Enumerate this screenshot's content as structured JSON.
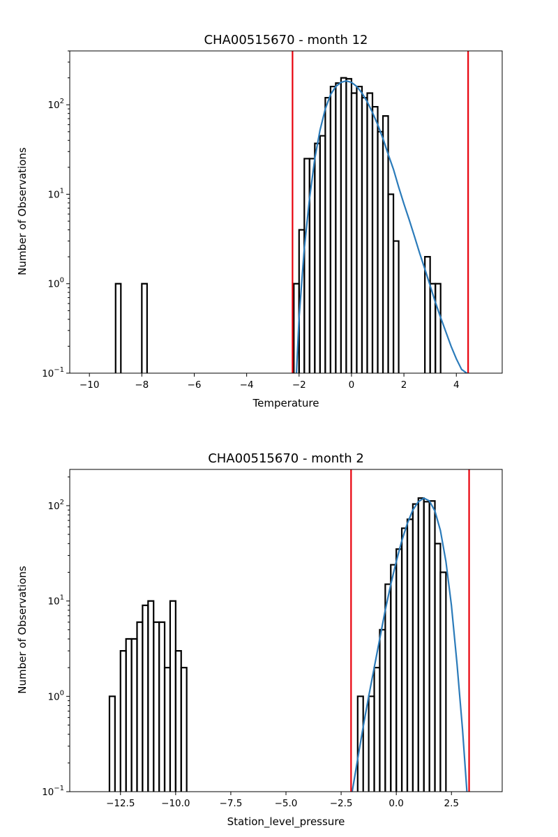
{
  "chart_data": [
    {
      "type": "histogram",
      "title": "CHA00515670 - month 12",
      "xlabel": "Temperature",
      "ylabel": "Number of Observations",
      "xlim": [
        -10.75,
        5.75
      ],
      "ylim": [
        0.1,
        400
      ],
      "yscale": "log",
      "grid": false,
      "xticks": [
        -10,
        -8,
        -6,
        -4,
        -2,
        0,
        2,
        4
      ],
      "xtick_labels": [
        "−10",
        "−8",
        "−6",
        "−4",
        "−2",
        "0",
        "2",
        "4"
      ],
      "yticks": [
        0.1,
        1,
        10,
        100
      ],
      "ytick_labels": [
        {
          "base": "10",
          "exp": "−1"
        },
        {
          "base": "10",
          "exp": "0"
        },
        {
          "base": "10",
          "exp": "1"
        },
        {
          "base": "10",
          "exp": "2"
        }
      ],
      "bin_width": 0.2,
      "bins": [
        [
          -9.0,
          1
        ],
        [
          -8.0,
          1
        ],
        [
          -2.2,
          1
        ],
        [
          -2.0,
          4
        ],
        [
          -1.8,
          25
        ],
        [
          -1.6,
          25
        ],
        [
          -1.4,
          37
        ],
        [
          -1.2,
          45
        ],
        [
          -1.0,
          120
        ],
        [
          -0.8,
          160
        ],
        [
          -0.6,
          175
        ],
        [
          -0.4,
          200
        ],
        [
          -0.2,
          195
        ],
        [
          0.0,
          135
        ],
        [
          0.2,
          160
        ],
        [
          0.4,
          120
        ],
        [
          0.6,
          135
        ],
        [
          0.8,
          95
        ],
        [
          1.0,
          50
        ],
        [
          1.2,
          75
        ],
        [
          1.4,
          10
        ],
        [
          1.6,
          3
        ],
        [
          2.8,
          2
        ],
        [
          3.0,
          1
        ],
        [
          3.2,
          1
        ]
      ],
      "fit_curve": [
        [
          -2.1,
          0.1
        ],
        [
          -2.0,
          0.42
        ],
        [
          -1.8,
          2.5
        ],
        [
          -1.6,
          9
        ],
        [
          -1.4,
          25
        ],
        [
          -1.2,
          52
        ],
        [
          -1.0,
          90
        ],
        [
          -0.8,
          130
        ],
        [
          -0.6,
          160
        ],
        [
          -0.4,
          178
        ],
        [
          -0.2,
          185
        ],
        [
          0.0,
          178
        ],
        [
          0.2,
          160
        ],
        [
          0.4,
          135
        ],
        [
          0.6,
          108
        ],
        [
          0.8,
          82
        ],
        [
          1.0,
          60
        ],
        [
          1.2,
          42
        ],
        [
          1.4,
          28
        ],
        [
          1.6,
          19
        ],
        [
          1.8,
          12
        ],
        [
          2.0,
          7.8
        ],
        [
          2.2,
          5.2
        ],
        [
          2.4,
          3.4
        ],
        [
          2.6,
          2.2
        ],
        [
          2.8,
          1.45
        ],
        [
          3.0,
          0.95
        ],
        [
          3.2,
          0.62
        ],
        [
          3.4,
          0.42
        ],
        [
          3.6,
          0.29
        ],
        [
          3.8,
          0.2
        ],
        [
          4.0,
          0.145
        ],
        [
          4.2,
          0.11
        ],
        [
          4.4,
          0.1
        ]
      ],
      "threshold_lines": [
        -2.25,
        4.45
      ],
      "colors": {
        "histogram": "#000000",
        "fit": "#2b7bba",
        "thresholds": "#e8000b"
      }
    },
    {
      "type": "histogram",
      "title": "CHA00515670 - month 2",
      "xlabel": "Station_level_pressure",
      "ylabel": "Number of Observations",
      "xlim": [
        -14.8,
        4.8
      ],
      "ylim": [
        0.1,
        240
      ],
      "yscale": "log",
      "grid": false,
      "xticks": [
        -12.5,
        -10.0,
        -7.5,
        -5.0,
        -2.5,
        0.0,
        2.5
      ],
      "xtick_labels": [
        "−12.5",
        "−10.0",
        "−7.5",
        "−5.0",
        "−2.5",
        "0.0",
        "2.5"
      ],
      "yticks": [
        0.1,
        1,
        10,
        100
      ],
      "ytick_labels": [
        {
          "base": "10",
          "exp": "−1"
        },
        {
          "base": "10",
          "exp": "0"
        },
        {
          "base": "10",
          "exp": "1"
        },
        {
          "base": "10",
          "exp": "2"
        }
      ],
      "bin_width": 0.25,
      "bins": [
        [
          -13.0,
          1
        ],
        [
          -12.75,
          0.1
        ],
        [
          -12.5,
          3
        ],
        [
          -12.25,
          4
        ],
        [
          -12.0,
          4
        ],
        [
          -11.75,
          6
        ],
        [
          -11.5,
          9
        ],
        [
          -11.25,
          10
        ],
        [
          -11.0,
          6
        ],
        [
          -10.75,
          6
        ],
        [
          -10.5,
          2
        ],
        [
          -10.25,
          10
        ],
        [
          -10.0,
          3
        ],
        [
          -9.75,
          2
        ],
        [
          -1.75,
          1
        ],
        [
          -1.5,
          0.1
        ],
        [
          -1.25,
          1
        ],
        [
          -1.0,
          2
        ],
        [
          -0.75,
          5
        ],
        [
          -0.5,
          15
        ],
        [
          -0.25,
          24
        ],
        [
          0.0,
          35
        ],
        [
          0.25,
          58
        ],
        [
          0.5,
          72
        ],
        [
          0.75,
          104
        ],
        [
          1.0,
          120
        ],
        [
          1.25,
          110
        ],
        [
          1.5,
          112
        ],
        [
          1.75,
          40
        ],
        [
          2.0,
          20
        ]
      ],
      "fit_curve": [
        [
          -2.0,
          0.1
        ],
        [
          -1.75,
          0.22
        ],
        [
          -1.5,
          0.48
        ],
        [
          -1.25,
          1.0
        ],
        [
          -1.0,
          2.0
        ],
        [
          -0.75,
          4.0
        ],
        [
          -0.5,
          8.0
        ],
        [
          -0.25,
          15
        ],
        [
          0.0,
          26
        ],
        [
          0.25,
          43
        ],
        [
          0.5,
          65
        ],
        [
          0.75,
          90
        ],
        [
          1.0,
          110
        ],
        [
          1.25,
          120
        ],
        [
          1.5,
          112
        ],
        [
          1.75,
          88
        ],
        [
          2.0,
          55
        ],
        [
          2.25,
          26
        ],
        [
          2.5,
          9
        ],
        [
          2.75,
          2.2
        ],
        [
          3.0,
          0.45
        ],
        [
          3.2,
          0.1
        ]
      ],
      "threshold_lines": [
        -2.05,
        3.3
      ],
      "colors": {
        "histogram": "#000000",
        "fit": "#2b7bba",
        "thresholds": "#e8000b"
      }
    }
  ]
}
